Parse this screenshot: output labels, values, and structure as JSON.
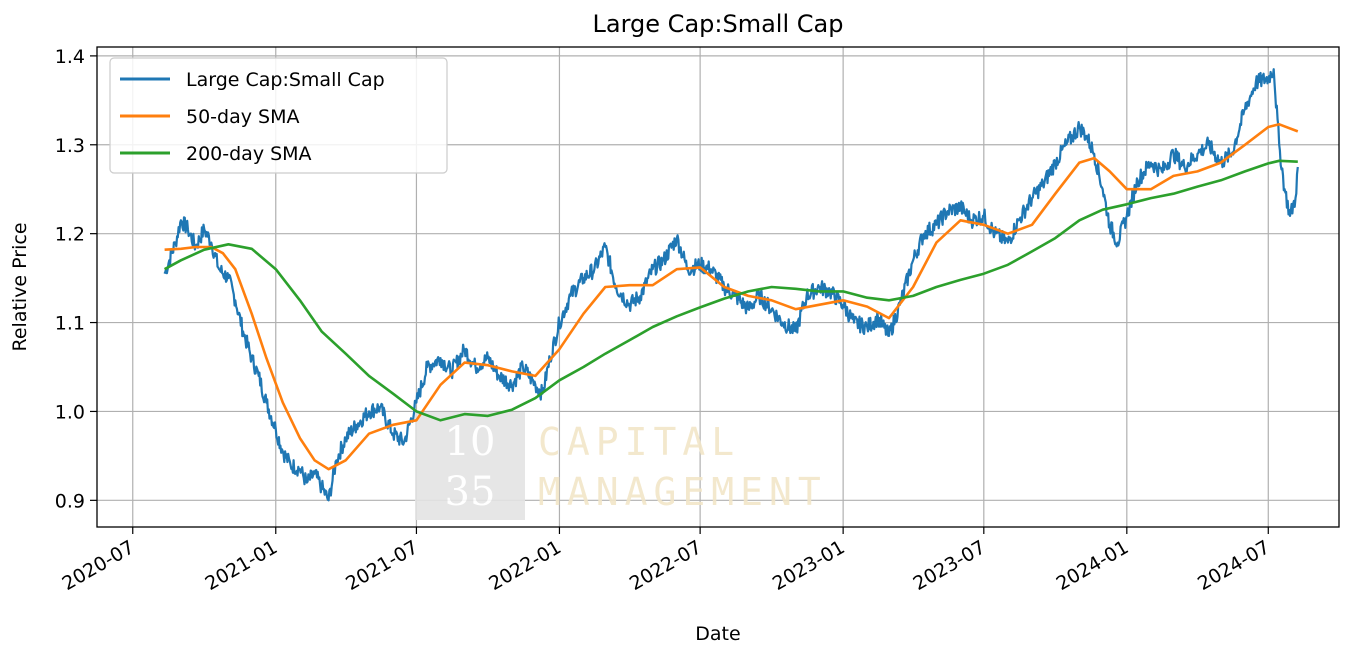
{
  "chart_data": {
    "type": "line",
    "title": "Large Cap:Small Cap",
    "xlabel": "Date",
    "ylabel": "Relative Price",
    "x_tick_labels": [
      "2020-07",
      "2021-01",
      "2021-07",
      "2022-01",
      "2022-07",
      "2023-01",
      "2023-07",
      "2024-01",
      "2024-07"
    ],
    "y_ticks": [
      0.9,
      1.0,
      1.1,
      1.2,
      1.3,
      1.4
    ],
    "y_tick_labels": [
      "0.9",
      "1.0",
      "1.1",
      "1.2",
      "1.3",
      "1.4"
    ],
    "xlim": [
      "2020-05-16",
      "2024-09-30"
    ],
    "ylim": [
      0.87,
      1.41
    ],
    "grid": true,
    "legend_position": "top-left",
    "series": [
      {
        "name": "Large Cap:Small Cap",
        "color": "#1f77b4",
        "points": [
          [
            "2020-08-11",
            1.155
          ],
          [
            "2020-08-25",
            1.19
          ],
          [
            "2020-09-01",
            1.215
          ],
          [
            "2020-09-10",
            1.205
          ],
          [
            "2020-09-20",
            1.185
          ],
          [
            "2020-10-01",
            1.205
          ],
          [
            "2020-10-10",
            1.19
          ],
          [
            "2020-10-20",
            1.16
          ],
          [
            "2020-11-01",
            1.15
          ],
          [
            "2020-11-10",
            1.125
          ],
          [
            "2020-11-20",
            1.09
          ],
          [
            "2020-12-01",
            1.06
          ],
          [
            "2020-12-10",
            1.04
          ],
          [
            "2020-12-20",
            1.01
          ],
          [
            "2021-01-01",
            0.98
          ],
          [
            "2021-01-10",
            0.955
          ],
          [
            "2021-01-20",
            0.94
          ],
          [
            "2021-02-01",
            0.935
          ],
          [
            "2021-02-10",
            0.92
          ],
          [
            "2021-02-20",
            0.93
          ],
          [
            "2021-03-01",
            0.915
          ],
          [
            "2021-03-10",
            0.9
          ],
          [
            "2021-03-20",
            0.945
          ],
          [
            "2021-04-01",
            0.97
          ],
          [
            "2021-04-15",
            0.985
          ],
          [
            "2021-05-01",
            1.0
          ],
          [
            "2021-05-15",
            1.005
          ],
          [
            "2021-06-01",
            0.975
          ],
          [
            "2021-06-15",
            0.965
          ],
          [
            "2021-07-01",
            1.01
          ],
          [
            "2021-07-15",
            1.05
          ],
          [
            "2021-08-01",
            1.06
          ],
          [
            "2021-08-15",
            1.045
          ],
          [
            "2021-09-01",
            1.07
          ],
          [
            "2021-09-15",
            1.05
          ],
          [
            "2021-10-01",
            1.06
          ],
          [
            "2021-10-15",
            1.04
          ],
          [
            "2021-11-01",
            1.03
          ],
          [
            "2021-11-15",
            1.05
          ],
          [
            "2021-12-01",
            1.03
          ],
          [
            "2021-12-10",
            1.02
          ],
          [
            "2021-12-20",
            1.06
          ],
          [
            "2022-01-01",
            1.1
          ],
          [
            "2022-01-15",
            1.13
          ],
          [
            "2022-02-01",
            1.15
          ],
          [
            "2022-02-15",
            1.16
          ],
          [
            "2022-03-01",
            1.185
          ],
          [
            "2022-03-15",
            1.14
          ],
          [
            "2022-04-01",
            1.12
          ],
          [
            "2022-04-15",
            1.13
          ],
          [
            "2022-05-01",
            1.16
          ],
          [
            "2022-05-15",
            1.17
          ],
          [
            "2022-06-01",
            1.195
          ],
          [
            "2022-06-15",
            1.16
          ],
          [
            "2022-07-01",
            1.165
          ],
          [
            "2022-07-15",
            1.16
          ],
          [
            "2022-08-01",
            1.14
          ],
          [
            "2022-08-15",
            1.13
          ],
          [
            "2022-09-01",
            1.115
          ],
          [
            "2022-09-15",
            1.13
          ],
          [
            "2022-10-01",
            1.115
          ],
          [
            "2022-10-15",
            1.1
          ],
          [
            "2022-11-01",
            1.09
          ],
          [
            "2022-11-15",
            1.13
          ],
          [
            "2022-12-01",
            1.14
          ],
          [
            "2022-12-15",
            1.135
          ],
          [
            "2023-01-01",
            1.12
          ],
          [
            "2023-01-15",
            1.1
          ],
          [
            "2023-02-01",
            1.095
          ],
          [
            "2023-02-15",
            1.105
          ],
          [
            "2023-03-01",
            1.085
          ],
          [
            "2023-03-15",
            1.12
          ],
          [
            "2023-04-01",
            1.17
          ],
          [
            "2023-04-15",
            1.2
          ],
          [
            "2023-05-01",
            1.21
          ],
          [
            "2023-05-15",
            1.225
          ],
          [
            "2023-06-01",
            1.23
          ],
          [
            "2023-06-15",
            1.215
          ],
          [
            "2023-07-01",
            1.22
          ],
          [
            "2023-07-15",
            1.2
          ],
          [
            "2023-08-01",
            1.19
          ],
          [
            "2023-08-15",
            1.215
          ],
          [
            "2023-09-01",
            1.24
          ],
          [
            "2023-09-15",
            1.255
          ],
          [
            "2023-10-01",
            1.28
          ],
          [
            "2023-10-15",
            1.3
          ],
          [
            "2023-11-01",
            1.32
          ],
          [
            "2023-11-10",
            1.31
          ],
          [
            "2023-11-20",
            1.29
          ],
          [
            "2023-12-01",
            1.25
          ],
          [
            "2023-12-10",
            1.21
          ],
          [
            "2023-12-20",
            1.19
          ],
          [
            "2024-01-01",
            1.22
          ],
          [
            "2024-01-15",
            1.26
          ],
          [
            "2024-02-01",
            1.28
          ],
          [
            "2024-02-15",
            1.27
          ],
          [
            "2024-03-01",
            1.29
          ],
          [
            "2024-03-15",
            1.275
          ],
          [
            "2024-04-01",
            1.29
          ],
          [
            "2024-04-15",
            1.3
          ],
          [
            "2024-05-01",
            1.28
          ],
          [
            "2024-05-15",
            1.29
          ],
          [
            "2024-06-01",
            1.34
          ],
          [
            "2024-06-15",
            1.37
          ],
          [
            "2024-07-01",
            1.375
          ],
          [
            "2024-07-08",
            1.385
          ],
          [
            "2024-07-15",
            1.3
          ],
          [
            "2024-07-22",
            1.25
          ],
          [
            "2024-07-29",
            1.22
          ],
          [
            "2024-08-05",
            1.24
          ],
          [
            "2024-08-08",
            1.275
          ]
        ]
      },
      {
        "name": "50-day SMA",
        "color": "#ff7f0e",
        "points": [
          [
            "2020-08-11",
            1.182
          ],
          [
            "2020-09-01",
            1.183
          ],
          [
            "2020-09-20",
            1.185
          ],
          [
            "2020-10-10",
            1.185
          ],
          [
            "2020-10-25",
            1.178
          ],
          [
            "2020-11-10",
            1.16
          ],
          [
            "2020-12-01",
            1.11
          ],
          [
            "2020-12-20",
            1.06
          ],
          [
            "2021-01-10",
            1.01
          ],
          [
            "2021-02-01",
            0.97
          ],
          [
            "2021-02-20",
            0.945
          ],
          [
            "2021-03-10",
            0.935
          ],
          [
            "2021-04-01",
            0.945
          ],
          [
            "2021-05-01",
            0.975
          ],
          [
            "2021-06-01",
            0.985
          ],
          [
            "2021-07-01",
            0.99
          ],
          [
            "2021-08-01",
            1.03
          ],
          [
            "2021-09-01",
            1.055
          ],
          [
            "2021-10-01",
            1.052
          ],
          [
            "2021-11-01",
            1.045
          ],
          [
            "2021-12-01",
            1.04
          ],
          [
            "2022-01-01",
            1.07
          ],
          [
            "2022-02-01",
            1.11
          ],
          [
            "2022-03-01",
            1.14
          ],
          [
            "2022-04-01",
            1.142
          ],
          [
            "2022-05-01",
            1.142
          ],
          [
            "2022-06-01",
            1.16
          ],
          [
            "2022-07-01",
            1.162
          ],
          [
            "2022-08-01",
            1.14
          ],
          [
            "2022-09-01",
            1.13
          ],
          [
            "2022-10-01",
            1.125
          ],
          [
            "2022-11-01",
            1.115
          ],
          [
            "2022-12-01",
            1.12
          ],
          [
            "2023-01-01",
            1.125
          ],
          [
            "2023-02-01",
            1.118
          ],
          [
            "2023-03-01",
            1.105
          ],
          [
            "2023-04-01",
            1.14
          ],
          [
            "2023-05-01",
            1.19
          ],
          [
            "2023-06-01",
            1.215
          ],
          [
            "2023-07-01",
            1.21
          ],
          [
            "2023-08-01",
            1.2
          ],
          [
            "2023-09-01",
            1.21
          ],
          [
            "2023-10-01",
            1.245
          ],
          [
            "2023-11-01",
            1.28
          ],
          [
            "2023-11-20",
            1.285
          ],
          [
            "2023-12-10",
            1.27
          ],
          [
            "2024-01-01",
            1.25
          ],
          [
            "2024-02-01",
            1.25
          ],
          [
            "2024-03-01",
            1.265
          ],
          [
            "2024-04-01",
            1.27
          ],
          [
            "2024-05-01",
            1.28
          ],
          [
            "2024-06-01",
            1.3
          ],
          [
            "2024-07-01",
            1.32
          ],
          [
            "2024-07-15",
            1.323
          ],
          [
            "2024-08-08",
            1.315
          ]
        ]
      },
      {
        "name": "200-day SMA",
        "color": "#2ca02c",
        "points": [
          [
            "2020-08-11",
            1.16
          ],
          [
            "2020-09-01",
            1.17
          ],
          [
            "2020-10-01",
            1.182
          ],
          [
            "2020-11-01",
            1.188
          ],
          [
            "2020-12-01",
            1.183
          ],
          [
            "2021-01-01",
            1.16
          ],
          [
            "2021-02-01",
            1.125
          ],
          [
            "2021-03-01",
            1.09
          ],
          [
            "2021-04-01",
            1.065
          ],
          [
            "2021-05-01",
            1.04
          ],
          [
            "2021-06-01",
            1.02
          ],
          [
            "2021-07-01",
            1.0
          ],
          [
            "2021-08-01",
            0.99
          ],
          [
            "2021-09-01",
            0.997
          ],
          [
            "2021-10-01",
            0.995
          ],
          [
            "2021-11-01",
            1.002
          ],
          [
            "2021-12-01",
            1.015
          ],
          [
            "2022-01-01",
            1.035
          ],
          [
            "2022-02-01",
            1.05
          ],
          [
            "2022-03-01",
            1.065
          ],
          [
            "2022-04-01",
            1.08
          ],
          [
            "2022-05-01",
            1.095
          ],
          [
            "2022-06-01",
            1.107
          ],
          [
            "2022-07-01",
            1.117
          ],
          [
            "2022-08-01",
            1.127
          ],
          [
            "2022-09-01",
            1.135
          ],
          [
            "2022-10-01",
            1.14
          ],
          [
            "2022-11-01",
            1.138
          ],
          [
            "2022-12-01",
            1.135
          ],
          [
            "2023-01-01",
            1.135
          ],
          [
            "2023-02-01",
            1.128
          ],
          [
            "2023-03-01",
            1.125
          ],
          [
            "2023-04-01",
            1.13
          ],
          [
            "2023-05-01",
            1.14
          ],
          [
            "2023-06-01",
            1.148
          ],
          [
            "2023-07-01",
            1.155
          ],
          [
            "2023-08-01",
            1.165
          ],
          [
            "2023-09-01",
            1.18
          ],
          [
            "2023-10-01",
            1.195
          ],
          [
            "2023-11-01",
            1.215
          ],
          [
            "2023-12-01",
            1.227
          ],
          [
            "2024-01-01",
            1.233
          ],
          [
            "2024-02-01",
            1.24
          ],
          [
            "2024-03-01",
            1.245
          ],
          [
            "2024-04-01",
            1.253
          ],
          [
            "2024-05-01",
            1.26
          ],
          [
            "2024-06-01",
            1.27
          ],
          [
            "2024-07-01",
            1.279
          ],
          [
            "2024-07-15",
            1.282
          ],
          [
            "2024-08-08",
            1.281
          ]
        ]
      }
    ]
  },
  "watermark": {
    "numeral_top": "10",
    "numeral_bottom": "35",
    "word_top": "CAPITAL",
    "word_bottom": "MANAGEMENT"
  }
}
